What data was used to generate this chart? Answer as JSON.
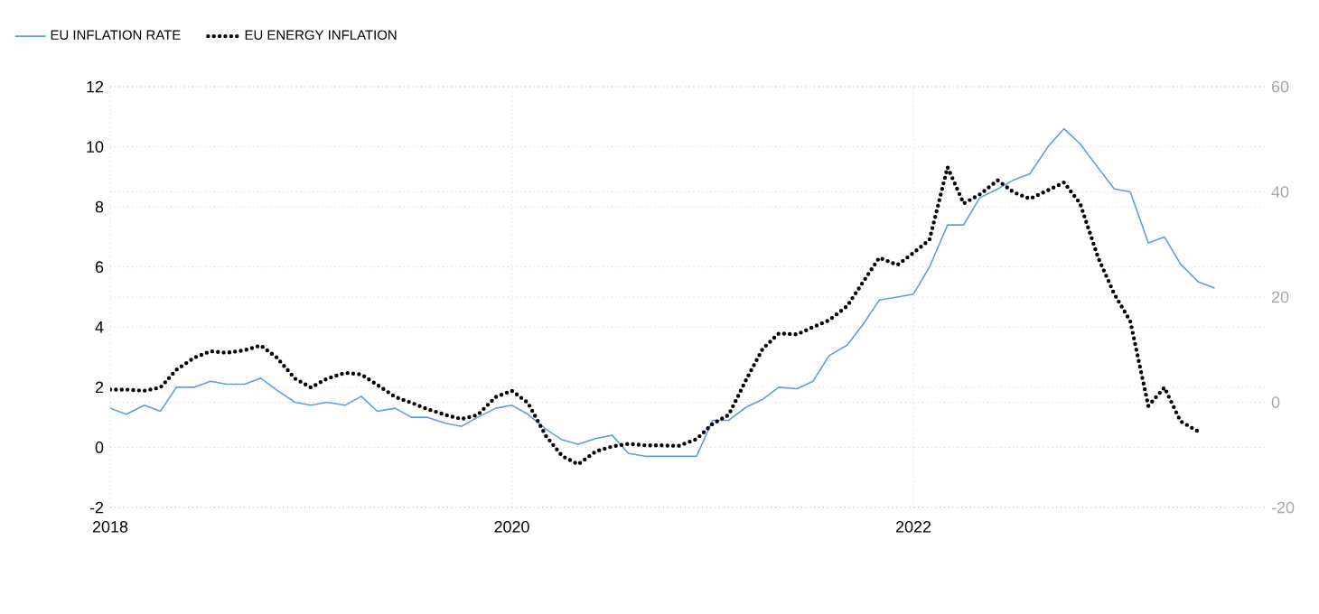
{
  "chart_data": {
    "type": "line",
    "xlim": [
      "2018-01",
      "2023-10"
    ],
    "xticks": [
      "2018",
      "2020",
      "2022"
    ],
    "ylim": [
      -2,
      12
    ],
    "yticks": [
      -2,
      0,
      2,
      4,
      6,
      8,
      10,
      12
    ],
    "y2lim": [
      -20,
      60
    ],
    "y2ticks": [
      -20,
      0,
      20,
      40,
      60
    ],
    "grid": true,
    "legend": "top left",
    "series": [
      {
        "name": "EU INFLATION RATE",
        "color": "#5b9cf0",
        "line_style": "solid",
        "x": [
          "2018-01",
          "2018-02",
          "2018-03",
          "2018-04",
          "2018-05",
          "2018-06",
          "2018-07",
          "2018-08",
          "2018-09",
          "2018-10",
          "2018-11",
          "2018-12",
          "2019-01",
          "2019-02",
          "2019-03",
          "2019-04",
          "2019-05",
          "2019-06",
          "2019-07",
          "2019-08",
          "2019-09",
          "2019-10",
          "2019-11",
          "2019-12",
          "2020-01",
          "2020-02",
          "2020-03",
          "2020-04",
          "2020-05",
          "2020-06",
          "2020-07",
          "2020-08",
          "2020-09",
          "2020-10",
          "2020-11",
          "2020-12",
          "2021-01",
          "2021-02",
          "2021-03",
          "2021-04",
          "2021-05",
          "2021-06",
          "2021-07",
          "2021-08",
          "2021-09",
          "2021-10",
          "2021-11",
          "2021-12",
          "2022-01",
          "2022-02",
          "2022-03",
          "2022-04",
          "2022-05",
          "2022-06",
          "2022-07",
          "2022-08",
          "2022-09",
          "2022-10",
          "2022-11",
          "2022-12",
          "2023-01",
          "2023-02",
          "2023-03",
          "2023-04",
          "2023-05",
          "2023-06",
          "2023-07"
        ],
        "values": [
          1.3,
          1.1,
          1.4,
          1.2,
          2.0,
          2.0,
          2.2,
          2.1,
          2.1,
          2.3,
          1.9,
          1.5,
          1.4,
          1.5,
          1.4,
          1.7,
          1.2,
          1.3,
          1.0,
          1.0,
          0.8,
          0.7,
          1.0,
          1.3,
          1.4,
          1.1,
          0.6,
          0.25,
          0.1,
          0.3,
          0.4,
          -0.2,
          -0.3,
          -0.3,
          -0.3,
          -0.3,
          0.9,
          0.9,
          1.35,
          1.6,
          2.0,
          1.95,
          2.2,
          3.05,
          3.4,
          4.1,
          4.9,
          5.0,
          5.1,
          6.0,
          7.4,
          7.4,
          8.3,
          8.6,
          8.9,
          9.1,
          10.0,
          10.6,
          10.1,
          9.3,
          8.6,
          8.5,
          6.8,
          7.0,
          6.1,
          5.5,
          5.3
        ]
      },
      {
        "name": "EU ENERGY INFLATION",
        "color": "#000000",
        "line_style": "dotted",
        "axis": "y2",
        "x": [
          "2018-01",
          "2018-02",
          "2018-03",
          "2018-04",
          "2018-05",
          "2018-06",
          "2018-07",
          "2018-08",
          "2018-09",
          "2018-10",
          "2018-11",
          "2018-12",
          "2019-01",
          "2019-02",
          "2019-03",
          "2019-04",
          "2019-05",
          "2019-06",
          "2019-07",
          "2019-08",
          "2019-09",
          "2019-10",
          "2019-11",
          "2019-12",
          "2020-01",
          "2020-02",
          "2020-03",
          "2020-04",
          "2020-05",
          "2020-06",
          "2020-07",
          "2020-08",
          "2020-09",
          "2020-10",
          "2020-11",
          "2020-12",
          "2021-01",
          "2021-02",
          "2021-03",
          "2021-04",
          "2021-05",
          "2021-06",
          "2021-07",
          "2021-08",
          "2021-09",
          "2021-10",
          "2021-11",
          "2021-12",
          "2022-01",
          "2022-02",
          "2022-03",
          "2022-04",
          "2022-05",
          "2022-06",
          "2022-07",
          "2022-08",
          "2022-09",
          "2022-10",
          "2022-11",
          "2022-12",
          "2023-01",
          "2023-02",
          "2023-03",
          "2023-04",
          "2023-05",
          "2023-06"
        ],
        "values": [
          2.4,
          2.4,
          2.2,
          2.8,
          6.2,
          8.5,
          9.7,
          9.4,
          9.9,
          10.8,
          8.5,
          4.5,
          2.8,
          4.5,
          5.6,
          5.3,
          3.3,
          1.0,
          -0.1,
          -1.3,
          -2.4,
          -3.2,
          -2.4,
          1.0,
          2.2,
          -0.1,
          -6.4,
          -10.2,
          -11.8,
          -9.3,
          -8.4,
          -7.9,
          -8.2,
          -8.2,
          -8.3,
          -7.0,
          -4.1,
          -2.4,
          4.5,
          10.2,
          13.1,
          12.9,
          14.3,
          15.6,
          18.3,
          22.9,
          27.5,
          26.1,
          28.4,
          30.9,
          44.7,
          37.8,
          39.5,
          42.2,
          39.9,
          38.7,
          40.3,
          41.8,
          37.8,
          27.5,
          20.6,
          15.4,
          -0.7,
          2.8,
          -3.6,
          -5.6
        ]
      }
    ]
  }
}
